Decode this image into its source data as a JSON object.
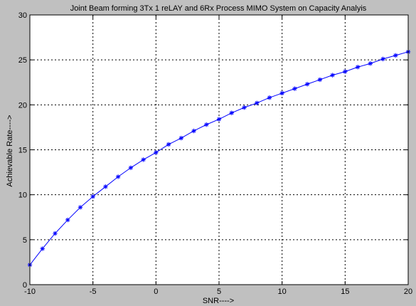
{
  "chart_data": {
    "type": "line",
    "title": "Joint Beam forming 3Tx 1 reLAY and 6Rx Process MIMO System on Capacity Analyis",
    "xlabel": "SNR---->",
    "ylabel": "Achievable Rate---->",
    "xlim": [
      -10,
      20
    ],
    "ylim": [
      0,
      30
    ],
    "xticks": [
      -10,
      -5,
      0,
      5,
      10,
      15,
      20
    ],
    "yticks": [
      0,
      5,
      10,
      15,
      20,
      25,
      30
    ],
    "grid": true,
    "series": [
      {
        "color": "#0000ff",
        "marker": "asterisk",
        "x": [
          -10,
          -9,
          -8,
          -7,
          -6,
          -5,
          -4,
          -3,
          -2,
          -1,
          0,
          1,
          2,
          3,
          4,
          5,
          6,
          7,
          8,
          9,
          10,
          11,
          12,
          13,
          14,
          15,
          16,
          17,
          18,
          19,
          20
        ],
        "y": [
          2.2,
          4.0,
          5.7,
          7.2,
          8.6,
          9.8,
          10.9,
          12.0,
          13.0,
          13.9,
          14.7,
          15.6,
          16.3,
          17.1,
          17.8,
          18.4,
          19.1,
          19.7,
          20.2,
          20.8,
          21.3,
          21.8,
          22.3,
          22.8,
          23.3,
          23.7,
          24.2,
          24.6,
          25.1,
          25.5,
          25.9
        ]
      }
    ]
  },
  "colors": {
    "figure_background": "#c0c0c0",
    "axes_background": "#ffffff",
    "grid": "#000000",
    "series": "#0000ff"
  }
}
